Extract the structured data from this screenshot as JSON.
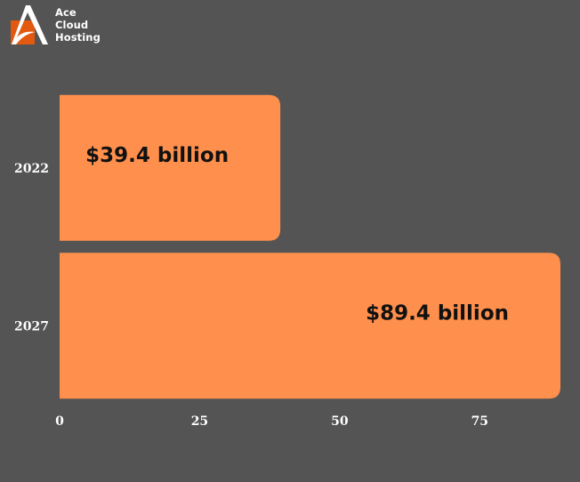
{
  "logo": {
    "line1": "Ace",
    "line2": "Cloud",
    "line3": "Hosting",
    "icon": "ace-a-logo-icon",
    "colors": {
      "square": "#e3590f",
      "letter": "#ffffff"
    }
  },
  "chart_data": {
    "type": "bar",
    "orientation": "horizontal",
    "categories": [
      "2022",
      "2027"
    ],
    "values": [
      39.4,
      89.4
    ],
    "data_labels": [
      "$39.4 billion",
      "$89.4 billion"
    ],
    "x_ticks": [
      0,
      25,
      50,
      75
    ],
    "xlim": [
      0,
      89.4
    ],
    "title": "",
    "xlabel": "",
    "ylabel": "",
    "grid": false,
    "legend": "none",
    "colors": {
      "background": "#545454",
      "bar": "#ff8f4c",
      "tick_text": "#ffffff",
      "label_text": "#111111"
    }
  }
}
